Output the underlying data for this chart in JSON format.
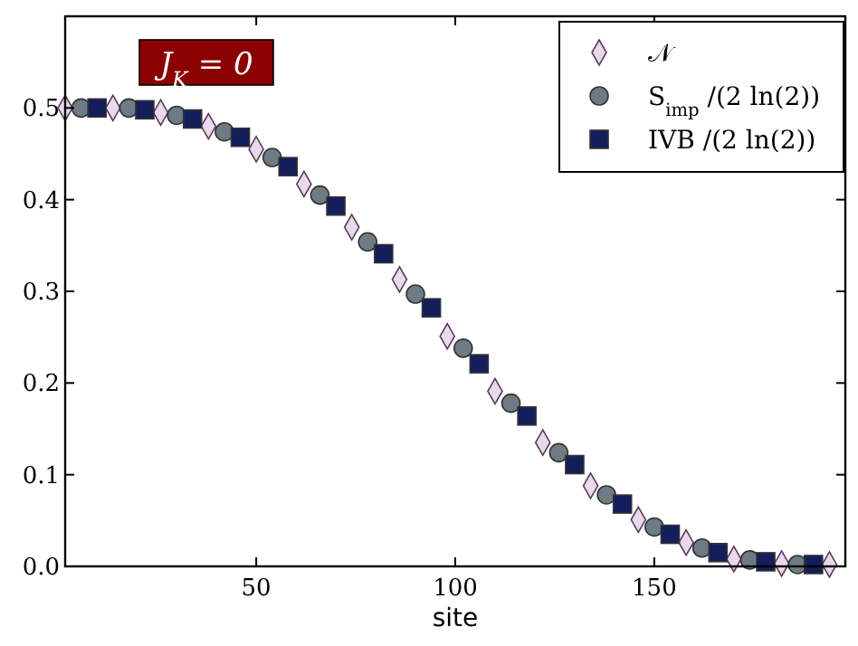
{
  "chart_data": {
    "type": "scatter",
    "xlabel": "site",
    "xlim": [
      2,
      198
    ],
    "ylim": [
      0,
      0.6
    ],
    "xticks": [
      50,
      100,
      150
    ],
    "yticks": [
      {
        "value": 0,
        "label": "0.0"
      },
      {
        "value": 0.1,
        "label": "0.1"
      },
      {
        "value": 0.2,
        "label": "0.2"
      },
      {
        "value": 0.3,
        "label": "0.3"
      },
      {
        "value": 0.4,
        "label": "0.4"
      },
      {
        "value": 0.5,
        "label": "0.5"
      }
    ],
    "grid": false,
    "legend": "top right",
    "annotations": [
      "J$_{K}$ = 0"
    ],
    "series": [
      {
        "name": "𝒩",
        "color": "#ead9ea",
        "marker": "diamond",
        "x": [
          2,
          14,
          26,
          38,
          50,
          62,
          74,
          86,
          98,
          110,
          122,
          134,
          146,
          158,
          170,
          182,
          194
        ],
        "values": [
          0.5,
          0.5,
          0.495,
          0.48,
          0.455,
          0.417,
          0.37,
          0.313,
          0.251,
          0.191,
          0.135,
          0.088,
          0.051,
          0.026,
          0.008,
          0.003,
          0.002
        ]
      },
      {
        "name": "S$_{imp}$ /(2 ln(2))",
        "color": "#6e7b85",
        "marker": "circle",
        "x": [
          6,
          18,
          30,
          42,
          54,
          66,
          78,
          90,
          102,
          114,
          126,
          138,
          150,
          162,
          174,
          186
        ],
        "values": [
          0.5,
          0.5,
          0.492,
          0.474,
          0.446,
          0.405,
          0.354,
          0.297,
          0.238,
          0.178,
          0.124,
          0.078,
          0.043,
          0.02,
          0.007,
          0.002
        ]
      },
      {
        "name": "IVB /(2 ln(2))",
        "color": "#141e5a",
        "marker": "square",
        "x": [
          10,
          22,
          34,
          46,
          58,
          70,
          82,
          94,
          106,
          118,
          130,
          142,
          154,
          166,
          178,
          190
        ],
        "values": [
          0.5,
          0.498,
          0.488,
          0.468,
          0.436,
          0.393,
          0.341,
          0.282,
          0.221,
          0.164,
          0.111,
          0.068,
          0.035,
          0.015,
          0.005,
          0.002
        ]
      }
    ]
  }
}
